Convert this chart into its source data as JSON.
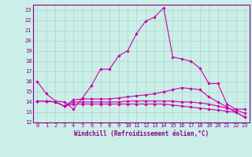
{
  "xlabel": "Windchill (Refroidissement éolien,°C)",
  "bg_color": "#cceee8",
  "grid_color": "#aaddcc",
  "line_color": "#cc00aa",
  "xlim": [
    -0.5,
    23.5
  ],
  "ylim": [
    12,
    23.5
  ],
  "xticks": [
    0,
    1,
    2,
    3,
    4,
    5,
    6,
    7,
    8,
    9,
    10,
    11,
    12,
    13,
    14,
    15,
    16,
    17,
    18,
    19,
    20,
    21,
    22,
    23
  ],
  "yticks": [
    12,
    13,
    14,
    15,
    16,
    17,
    18,
    19,
    20,
    21,
    22,
    23
  ],
  "series": [
    [
      16.0,
      14.8,
      14.1,
      14.0,
      13.3,
      14.4,
      15.6,
      17.2,
      17.2,
      18.5,
      19.0,
      20.7,
      21.9,
      22.3,
      23.2,
      18.4,
      18.2,
      18.0,
      17.3,
      15.8,
      15.8,
      13.8,
      13.3,
      13.3
    ],
    [
      14.1,
      14.1,
      14.0,
      13.6,
      14.2,
      14.3,
      14.3,
      14.3,
      14.3,
      14.4,
      14.5,
      14.6,
      14.7,
      14.8,
      15.0,
      15.2,
      15.4,
      15.3,
      15.2,
      14.5,
      14.0,
      13.5,
      13.0,
      12.5
    ],
    [
      14.1,
      14.1,
      14.0,
      13.6,
      14.0,
      14.0,
      14.0,
      14.0,
      14.0,
      14.0,
      14.1,
      14.1,
      14.1,
      14.1,
      14.1,
      14.1,
      14.0,
      14.0,
      13.9,
      13.8,
      13.6,
      13.4,
      13.2,
      12.9
    ],
    [
      14.1,
      14.1,
      14.0,
      13.6,
      13.8,
      13.8,
      13.8,
      13.8,
      13.8,
      13.8,
      13.8,
      13.8,
      13.8,
      13.8,
      13.8,
      13.7,
      13.6,
      13.5,
      13.4,
      13.3,
      13.2,
      13.1,
      13.0,
      12.5
    ]
  ],
  "tick_fontsize": 5.0,
  "xlabel_fontsize": 5.5,
  "marker_size": 2.2,
  "linewidth": 0.8
}
